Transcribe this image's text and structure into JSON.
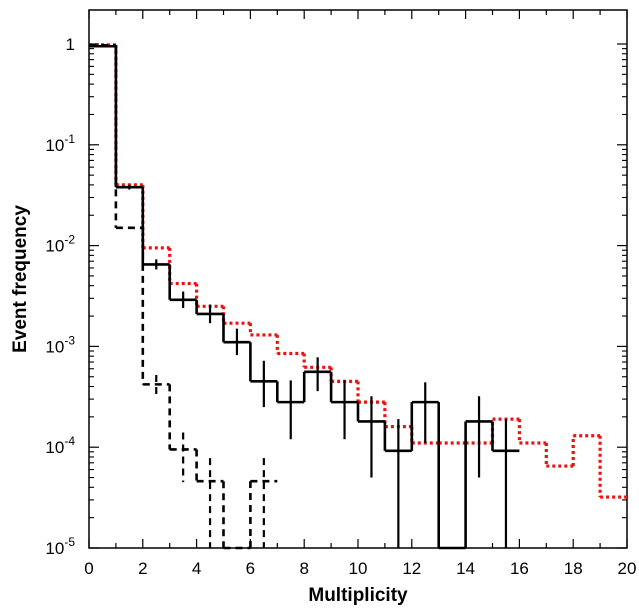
{
  "chart_data": {
    "type": "line",
    "title": "",
    "xlabel": "Multiplicity",
    "ylabel": "Event frequency",
    "xlim": [
      0,
      20
    ],
    "ylim": [
      1e-05,
      1.5
    ],
    "yscale": "log",
    "grid": false,
    "legend": "none",
    "x_ticks": [
      "0",
      "2",
      "4",
      "6",
      "8",
      "10",
      "12",
      "14",
      "16",
      "18",
      "20"
    ],
    "y_ticks": [
      {
        "value": 1,
        "base": "1",
        "exp": ""
      },
      {
        "value": 0.1,
        "base": "10",
        "exp": "-1"
      },
      {
        "value": 0.01,
        "base": "10",
        "exp": "-2"
      },
      {
        "value": 0.001,
        "base": "10",
        "exp": "-3"
      },
      {
        "value": 0.0001,
        "base": "10",
        "exp": "-4"
      },
      {
        "value": 1e-05,
        "base": "10",
        "exp": "-5"
      }
    ],
    "series": [
      {
        "style": "solid",
        "color": "#000000",
        "bin_width": 1,
        "bin_starts": [
          0,
          1,
          2,
          3,
          4,
          5,
          6,
          7,
          8,
          9,
          10,
          11,
          12,
          13,
          14,
          15
        ],
        "values": [
          0.95,
          0.038,
          0.0065,
          0.0029,
          0.0021,
          0.0011,
          0.00045,
          0.00028,
          0.00056,
          0.00028,
          0.00018,
          9.2e-05,
          0.00028,
          2.5e-06,
          0.00018,
          9.2e-05
        ],
        "error_bars": [
          {
            "x": 0.5,
            "low": 0.93,
            "high": 0.97
          },
          {
            "x": 1.5,
            "low": 0.036,
            "high": 0.04
          },
          {
            "x": 2.5,
            "low": 0.0058,
            "high": 0.0073
          },
          {
            "x": 3.5,
            "low": 0.0024,
            "high": 0.0035
          },
          {
            "x": 4.5,
            "low": 0.0017,
            "high": 0.0026
          },
          {
            "x": 5.5,
            "low": 0.00082,
            "high": 0.0015
          },
          {
            "x": 6.5,
            "low": 0.00025,
            "high": 0.00072
          },
          {
            "x": 7.5,
            "low": 0.00012,
            "high": 0.00046
          },
          {
            "x": 8.5,
            "low": 0.00036,
            "high": 0.00078
          },
          {
            "x": 9.5,
            "low": 0.00012,
            "high": 0.00046
          },
          {
            "x": 10.5,
            "low": 5e-05,
            "high": 0.00032
          },
          {
            "x": 11.5,
            "low": 1e-06,
            "high": 0.00019
          },
          {
            "x": 12.5,
            "low": 0.00011,
            "high": 0.00044
          },
          {
            "x": 14.5,
            "low": 5e-05,
            "high": 0.00032
          },
          {
            "x": 15.5,
            "low": 1e-06,
            "high": 0.00019
          }
        ]
      },
      {
        "style": "dashed",
        "color": "#000000",
        "bin_width": 1,
        "bin_starts": [
          0,
          1,
          2,
          3,
          4,
          5,
          6
        ],
        "values": [
          0.97,
          0.015,
          0.00042,
          9.5e-05,
          4.6e-05,
          2.5e-06,
          4.6e-05
        ],
        "error_bars": [
          {
            "x": 2.5,
            "low": 0.00031,
            "high": 0.00052
          },
          {
            "x": 3.5,
            "low": 4.5e-05,
            "high": 0.00014
          },
          {
            "x": 4.5,
            "low": 5e-06,
            "high": 7.8e-05
          },
          {
            "x": 6.5,
            "low": 5e-06,
            "high": 7.8e-05
          }
        ]
      },
      {
        "style": "dotted",
        "color": "#ee1111",
        "bin_width": 1,
        "bin_starts": [
          0,
          1,
          2,
          3,
          4,
          5,
          6,
          7,
          8,
          9,
          10,
          11,
          12,
          13,
          14,
          15,
          16,
          17,
          18,
          19
        ],
        "values": [
          0.98,
          0.04,
          0.0095,
          0.0042,
          0.0025,
          0.0017,
          0.0013,
          0.00085,
          0.00062,
          0.00045,
          0.00028,
          0.00016,
          0.00011,
          0.00011,
          0.00011,
          0.00019,
          0.00011,
          6.5e-05,
          0.00013,
          3.2e-05
        ]
      }
    ]
  }
}
